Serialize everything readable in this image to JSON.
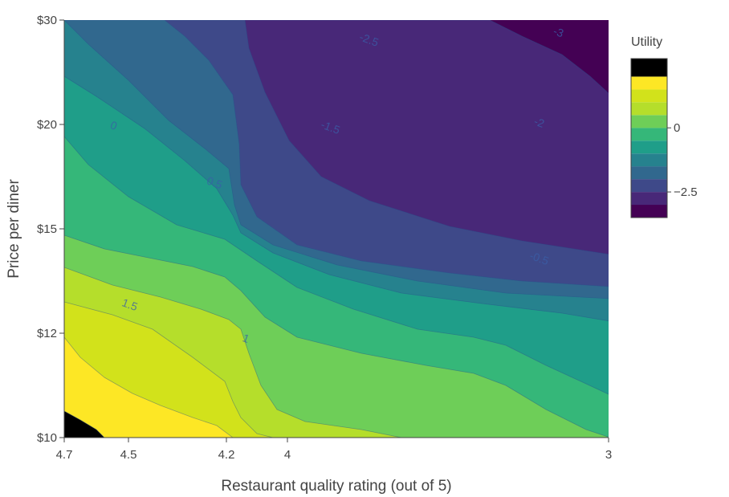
{
  "chart_data": {
    "type": "contour",
    "xlabel": "Restaurant quality rating (out of 5)",
    "ylabel": "Price per diner",
    "x_axis": {
      "range": [
        4.7,
        3
      ],
      "reversed": true,
      "ticks": [
        {
          "value": 4.7,
          "label": "4.7"
        },
        {
          "value": 4.5,
          "label": "4.5"
        },
        {
          "value": 4.2,
          "label": "4.2"
        },
        {
          "value": 4.0,
          "label": "4"
        },
        {
          "value": 3.0,
          "label": "3"
        }
      ]
    },
    "y_axis": {
      "range": [
        10,
        30
      ],
      "ticks": [
        {
          "value": 10,
          "label": "$10"
        },
        {
          "value": 12,
          "label": "$12"
        },
        {
          "value": 15,
          "label": "$15"
        },
        {
          "value": 20,
          "label": "$20"
        },
        {
          "value": 30,
          "label": "$30"
        }
      ]
    },
    "colorscale": "Viridis",
    "colorbar": {
      "title": "Utility",
      "ticks": [
        {
          "value": 0,
          "label": "0"
        },
        {
          "value": -2.5,
          "label": "−2.5"
        }
      ]
    },
    "contour_levels": [
      -3,
      -2.5,
      -2,
      -1.5,
      -1,
      -0.5,
      0,
      0.5,
      1,
      1.5,
      2
    ],
    "fill_colors": [
      "#440154",
      "#482878",
      "#3e4989",
      "#31688e",
      "#26828e",
      "#1f9e89",
      "#35b779",
      "#6ece58",
      "#b5de2b",
      "#d2e21b",
      "#fde725"
    ],
    "contour_labels": [
      {
        "text": "-3",
        "x": 3.16,
        "y": 27.9
      },
      {
        "text": "-2.5",
        "x": 3.75,
        "y": 27.0
      },
      {
        "text": "-2",
        "x": 3.22,
        "y": 19.9
      },
      {
        "text": "-1.5",
        "x": 3.87,
        "y": 19.6
      },
      {
        "text": "-0.5",
        "x": 3.22,
        "y": 13.9
      },
      {
        "text": "0",
        "x": 4.55,
        "y": 19.7
      },
      {
        "text": "0.5",
        "x": 4.24,
        "y": 16.7
      },
      {
        "text": "1",
        "x": 4.14,
        "y": 11.8
      },
      {
        "text": "1.5",
        "x": 4.5,
        "y": 12.6
      }
    ]
  }
}
